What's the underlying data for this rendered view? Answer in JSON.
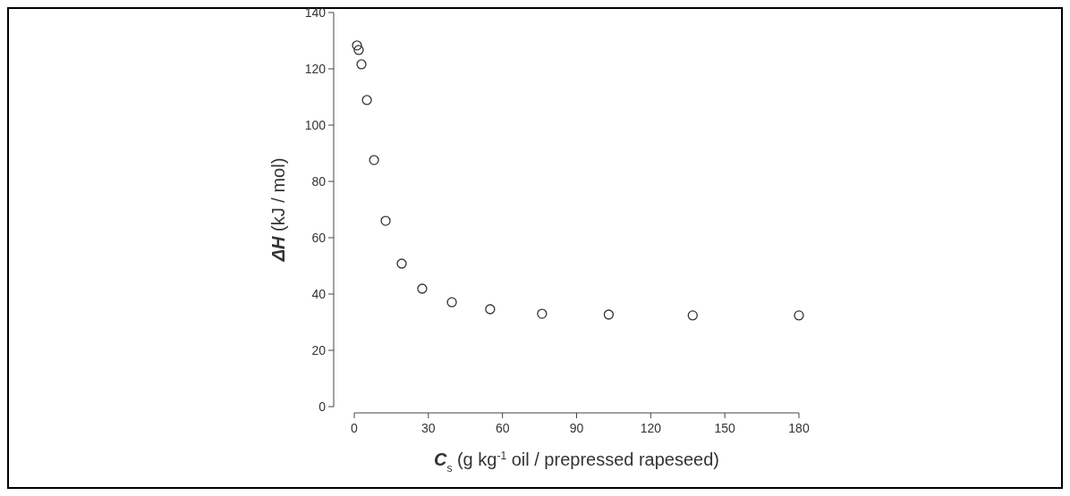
{
  "chart_data": {
    "type": "scatter",
    "xlabel": "C$_{s}$ (g kg$^{-1}$ oil / prepressed rapeseed)",
    "ylabel": "ΔH (kJ / mol)",
    "marker": "circle",
    "x": [
      1.1,
      1.8,
      2.9,
      5.1,
      8.0,
      12.7,
      19.2,
      27.5,
      39.5,
      55,
      76,
      103,
      137,
      180
    ],
    "values": [
      128.3,
      126.7,
      121.6,
      108.9,
      87.6,
      66.0,
      50.8,
      41.9,
      37.1,
      34.6,
      33.0,
      32.7,
      32.4,
      32.4
    ],
    "color": "#333333",
    "xlim": [
      0,
      180
    ],
    "xticks": [
      0,
      30,
      60,
      90,
      120,
      150,
      180
    ],
    "ylim": [
      0,
      140
    ],
    "yticks": [
      0,
      20,
      40,
      60,
      80,
      100,
      120,
      140
    ],
    "grid": false
  }
}
